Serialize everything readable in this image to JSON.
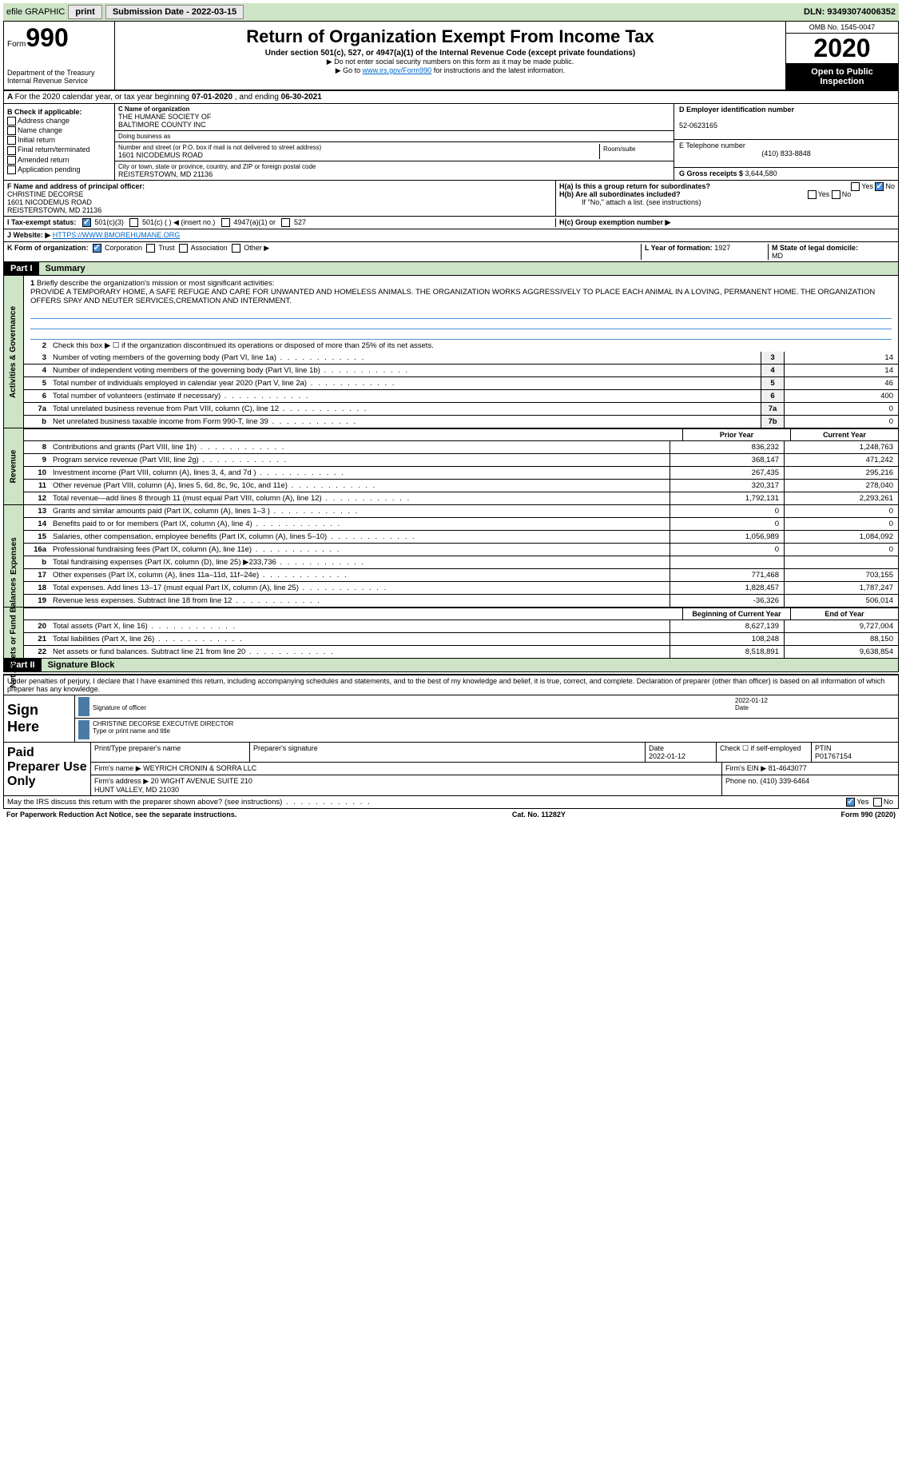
{
  "topbar": {
    "efile": "efile GRAPHIC",
    "print": "print",
    "subdate_label": "Submission Date - ",
    "subdate": "2022-03-15",
    "dln_label": "DLN: ",
    "dln": "93493074006352"
  },
  "header": {
    "form": "Form",
    "formnum": "990",
    "dept": "Department of the Treasury\nInternal Revenue Service",
    "title": "Return of Organization Exempt From Income Tax",
    "sub": "Under section 501(c), 527, or 4947(a)(1) of the Internal Revenue Code (except private foundations)",
    "note1": "▶ Do not enter social security numbers on this form as it may be made public.",
    "note2_pre": "▶ Go to ",
    "note2_link": "www.irs.gov/Form990",
    "note2_post": " for instructions and the latest information.",
    "omb": "OMB No. 1545-0047",
    "year": "2020",
    "open": "Open to Public Inspection"
  },
  "rowA": {
    "text": "For the 2020 calendar year, or tax year beginning ",
    "begin": "07-01-2020",
    "mid": "   , and ending ",
    "end": "06-30-2021"
  },
  "boxB": {
    "title": "B Check if applicable:",
    "items": [
      "Address change",
      "Name change",
      "Initial return",
      "Final return/terminated",
      "Amended return",
      "Application pending"
    ]
  },
  "boxC": {
    "name_label": "C Name of organization",
    "name": "THE HUMANE SOCIETY OF\nBALTIMORE COUNTY INC",
    "dba_label": "Doing business as",
    "dba": "",
    "street_label": "Number and street (or P.O. box if mail is not delivered to street address)",
    "street": "1601 NICODEMUS ROAD",
    "room_label": "Room/suite",
    "city_label": "City or town, state or province, country, and ZIP or foreign postal code",
    "city": "REISTERSTOWN, MD  21136"
  },
  "boxD": {
    "label": "D Employer identification number",
    "ein": "52-0623165"
  },
  "boxE": {
    "label": "E Telephone number",
    "phone": "(410) 833-8848"
  },
  "boxG": {
    "label": "G Gross receipts $ ",
    "val": "3,644,580"
  },
  "boxF": {
    "label": "F Name and address of principal officer:",
    "name": "CHRISTINE DECORSE",
    "street": "1601 NICODEMUS ROAD",
    "city": "REISTERSTOWN, MD  21136"
  },
  "boxH": {
    "ha_label": "H(a)  Is this a group return for subordinates?",
    "hb_label": "H(b)  Are all subordinates included?",
    "hb_note": "If \"No,\" attach a list. (see instructions)",
    "hc_label": "H(c)  Group exemption number ▶",
    "yes": "Yes",
    "no": "No"
  },
  "rowI": {
    "label": "I   Tax-exempt status:",
    "opts": [
      "501(c)(3)",
      "501(c) (  ) ◀ (insert no.)",
      "4947(a)(1) or",
      "527"
    ]
  },
  "rowJ": {
    "label": "J   Website: ▶",
    "url": "HTTPS://WWW.BMOREHUMANE.ORG"
  },
  "rowK": {
    "label": "K Form of organization:",
    "opts": [
      "Corporation",
      "Trust",
      "Association",
      "Other ▶"
    ],
    "l_label": "L Year of formation: ",
    "l_val": "1927",
    "m_label": "M State of legal domicile: ",
    "m_val": "MD"
  },
  "part1": {
    "hdr": "Part I",
    "title": "Summary",
    "sidebar1": "Activities & Governance",
    "sidebar2": "Revenue",
    "sidebar3": "Expenses",
    "sidebar4": "Net Assets or Fund Balances",
    "line1": "Briefly describe the organization's mission or most significant activities:",
    "mission": "PROVIDE A TEMPORARY HOME, A SAFE REFUGE AND CARE FOR UNWANTED AND HOMELESS ANIMALS. THE ORGANIZATION WORKS AGGRESSIVELY TO PLACE EACH ANIMAL IN A LOVING, PERMANENT HOME. THE ORGANIZATION OFFERS SPAY AND NEUTER SERVICES,CREMATION AND INTERNMENT.",
    "line2": "Check this box ▶ ☐ if the organization discontinued its operations or disposed of more than 25% of its net assets.",
    "lines_gov": [
      {
        "n": "3",
        "d": "Number of voting members of the governing body (Part VI, line 1a)",
        "box": "3",
        "v": "14"
      },
      {
        "n": "4",
        "d": "Number of independent voting members of the governing body (Part VI, line 1b)",
        "box": "4",
        "v": "14"
      },
      {
        "n": "5",
        "d": "Total number of individuals employed in calendar year 2020 (Part V, line 2a)",
        "box": "5",
        "v": "46"
      },
      {
        "n": "6",
        "d": "Total number of volunteers (estimate if necessary)",
        "box": "6",
        "v": "400"
      },
      {
        "n": "7a",
        "d": "Total unrelated business revenue from Part VIII, column (C), line 12",
        "box": "7a",
        "v": "0"
      },
      {
        "n": "b",
        "d": "Net unrelated business taxable income from Form 990-T, line 39",
        "box": "7b",
        "v": "0"
      }
    ],
    "col_prior": "Prior Year",
    "col_current": "Current Year",
    "lines_rev": [
      {
        "n": "8",
        "d": "Contributions and grants (Part VIII, line 1h)",
        "p": "836,232",
        "c": "1,248,763"
      },
      {
        "n": "9",
        "d": "Program service revenue (Part VIII, line 2g)",
        "p": "368,147",
        "c": "471,242"
      },
      {
        "n": "10",
        "d": "Investment income (Part VIII, column (A), lines 3, 4, and 7d )",
        "p": "267,435",
        "c": "295,216"
      },
      {
        "n": "11",
        "d": "Other revenue (Part VIII, column (A), lines 5, 6d, 8c, 9c, 10c, and 11e)",
        "p": "320,317",
        "c": "278,040"
      },
      {
        "n": "12",
        "d": "Total revenue—add lines 8 through 11 (must equal Part VIII, column (A), line 12)",
        "p": "1,792,131",
        "c": "2,293,261"
      }
    ],
    "lines_exp": [
      {
        "n": "13",
        "d": "Grants and similar amounts paid (Part IX, column (A), lines 1–3 )",
        "p": "0",
        "c": "0"
      },
      {
        "n": "14",
        "d": "Benefits paid to or for members (Part IX, column (A), line 4)",
        "p": "0",
        "c": "0"
      },
      {
        "n": "15",
        "d": "Salaries, other compensation, employee benefits (Part IX, column (A), lines 5–10)",
        "p": "1,056,989",
        "c": "1,084,092"
      },
      {
        "n": "16a",
        "d": "Professional fundraising fees (Part IX, column (A), line 11e)",
        "p": "0",
        "c": "0"
      },
      {
        "n": "b",
        "d": "Total fundraising expenses (Part IX, column (D), line 25) ▶233,736",
        "p": "",
        "c": ""
      },
      {
        "n": "17",
        "d": "Other expenses (Part IX, column (A), lines 11a–11d, 11f–24e)",
        "p": "771,468",
        "c": "703,155"
      },
      {
        "n": "18",
        "d": "Total expenses. Add lines 13–17 (must equal Part IX, column (A), line 25)",
        "p": "1,828,457",
        "c": "1,787,247"
      },
      {
        "n": "19",
        "d": "Revenue less expenses. Subtract line 18 from line 12",
        "p": "-36,326",
        "c": "506,014"
      }
    ],
    "col_begin": "Beginning of Current Year",
    "col_end": "End of Year",
    "lines_net": [
      {
        "n": "20",
        "d": "Total assets (Part X, line 16)",
        "p": "8,627,139",
        "c": "9,727,004"
      },
      {
        "n": "21",
        "d": "Total liabilities (Part X, line 26)",
        "p": "108,248",
        "c": "88,150"
      },
      {
        "n": "22",
        "d": "Net assets or fund balances. Subtract line 21 from line 20",
        "p": "8,518,891",
        "c": "9,638,854"
      }
    ]
  },
  "part2": {
    "hdr": "Part II",
    "title": "Signature Block",
    "declare": "Under penalties of perjury, I declare that I have examined this return, including accompanying schedules and statements, and to the best of my knowledge and belief, it is true, correct, and complete. Declaration of preparer (other than officer) is based on all information of which preparer has any knowledge.",
    "sign_here": "Sign Here",
    "sig_officer": "Signature of officer",
    "sig_date": "2022-01-12",
    "sig_date_label": "Date",
    "sig_name": "CHRISTINE DECORSE  EXECUTIVE DIRECTOR",
    "sig_name_label": "Type or print name and title",
    "paid": "Paid Preparer Use Only",
    "prep_name_label": "Print/Type preparer's name",
    "prep_sig_label": "Preparer's signature",
    "prep_date_label": "Date",
    "prep_date": "2022-01-12",
    "prep_self": "Check ☐ if self-employed",
    "ptin_label": "PTIN",
    "ptin": "P01767154",
    "firm_name_label": "Firm's name     ▶",
    "firm_name": "WEYRICH CRONIN & SORRA LLC",
    "firm_ein_label": "Firm's EIN ▶",
    "firm_ein": "81-4643077",
    "firm_addr_label": "Firm's address ▶",
    "firm_addr": "20 WIGHT AVENUE SUITE 210\nHUNT VALLEY, MD  21030",
    "firm_phone_label": "Phone no. ",
    "firm_phone": "(410) 339-6464",
    "discuss": "May the IRS discuss this return with the preparer shown above? (see instructions)",
    "yes": "Yes",
    "no": "No"
  },
  "footer": {
    "left": "For Paperwork Reduction Act Notice, see the separate instructions.",
    "mid": "Cat. No. 11282Y",
    "right": "Form 990 (2020)"
  }
}
